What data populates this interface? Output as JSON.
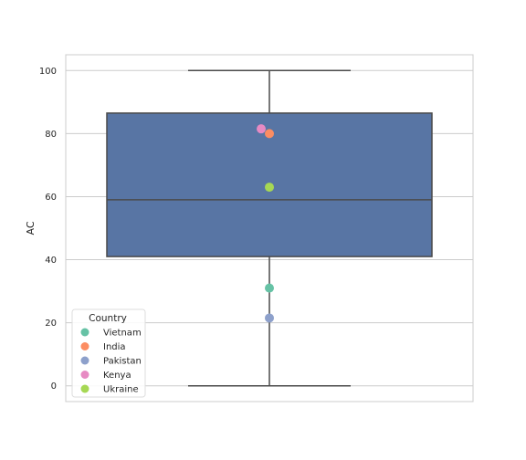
{
  "chart_data": {
    "type": "boxplot",
    "ylabel": "AC",
    "xlabel": "",
    "ylim": [
      -5,
      105
    ],
    "yticks": [
      0,
      20,
      40,
      60,
      80,
      100
    ],
    "grid": "horizontal",
    "box": {
      "min": 0,
      "q1": 41,
      "median": 59,
      "q3": 86.5,
      "max": 100,
      "color": "#5875a4",
      "line_color": "#4a4a4a"
    },
    "points": [
      {
        "label": "Vietnam",
        "value": 31,
        "color": "#66c2a5"
      },
      {
        "label": "India",
        "value": 80,
        "color": "#fc8d62"
      },
      {
        "label": "Pakistan",
        "value": 21.5,
        "color": "#8da0cb"
      },
      {
        "label": "Kenya",
        "value": 81.5,
        "color": "#e78ac3"
      },
      {
        "label": "Ukraine",
        "value": 63,
        "color": "#a6d854"
      }
    ],
    "legend": {
      "title": "Country",
      "placement": "lower-left"
    }
  }
}
